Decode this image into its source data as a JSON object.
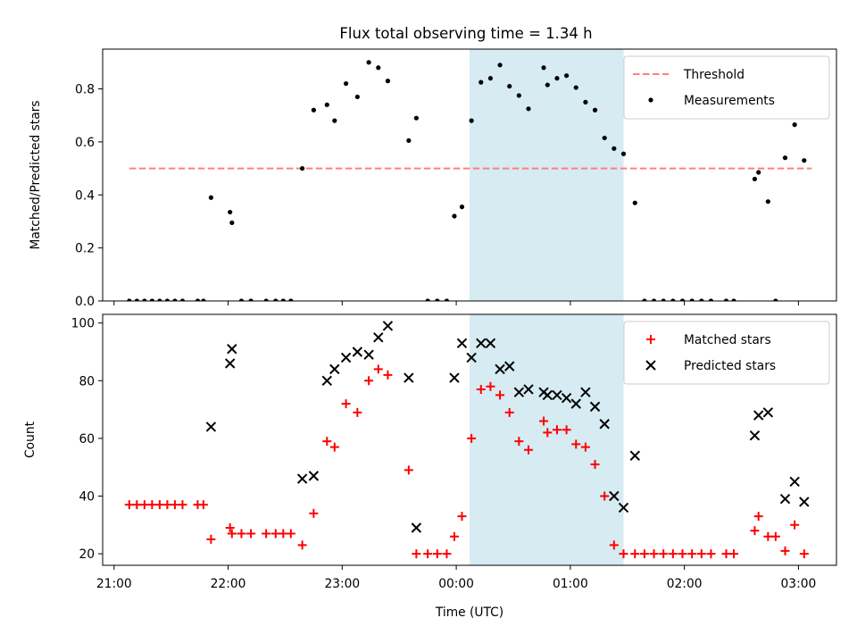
{
  "figure": {
    "title": "Flux total observing time = 1.34 h"
  },
  "chart_data": [
    {
      "type": "scatter",
      "ylabel": "Matched/Predicted stars",
      "xlabel": "",
      "xlim": [
        "20:54",
        "03:20"
      ],
      "ylim": [
        0,
        0.95
      ],
      "yticks": [
        0.0,
        0.2,
        0.4,
        0.6,
        0.8
      ],
      "ytick_labels": [
        "0.0",
        "0.2",
        "0.4",
        "0.6",
        "0.8"
      ],
      "legend_position": "upper right",
      "grid": false,
      "threshold": {
        "name": "Threshold",
        "value": 0.5,
        "x_start": "21:08",
        "x_end": "03:07",
        "color": "#ff7f7f"
      },
      "highlight_span": {
        "start": "00:07",
        "end": "01:28",
        "color": "#add8e6"
      },
      "series": [
        {
          "name": "Measurements",
          "color": "#000000",
          "points": [
            [
              "21:08",
              0.0
            ],
            [
              "21:12",
              0.0
            ],
            [
              "21:16",
              0.0
            ],
            [
              "21:20",
              0.0
            ],
            [
              "21:24",
              0.0
            ],
            [
              "21:28",
              0.0
            ],
            [
              "21:32",
              0.0
            ],
            [
              "21:36",
              0.0
            ],
            [
              "21:44",
              0.0
            ],
            [
              "21:47",
              0.0
            ],
            [
              "21:51",
              0.39
            ],
            [
              "22:01",
              0.335
            ],
            [
              "22:02",
              0.295
            ],
            [
              "22:07",
              0.0
            ],
            [
              "22:12",
              0.0
            ],
            [
              "22:20",
              0.0
            ],
            [
              "22:25",
              0.0
            ],
            [
              "22:29",
              0.0
            ],
            [
              "22:33",
              0.0
            ],
            [
              "22:39",
              0.5
            ],
            [
              "22:45",
              0.72
            ],
            [
              "22:52",
              0.74
            ],
            [
              "22:56",
              0.68
            ],
            [
              "23:02",
              0.82
            ],
            [
              "23:08",
              0.77
            ],
            [
              "23:14",
              0.9
            ],
            [
              "23:19",
              0.88
            ],
            [
              "23:24",
              0.83
            ],
            [
              "23:35",
              0.605
            ],
            [
              "23:39",
              0.69
            ],
            [
              "23:45",
              0.0
            ],
            [
              "23:50",
              0.0
            ],
            [
              "23:55",
              0.0
            ],
            [
              "23:59",
              0.32
            ],
            [
              "00:03",
              0.355
            ],
            [
              "00:08",
              0.68
            ],
            [
              "00:13",
              0.825
            ],
            [
              "00:18",
              0.84
            ],
            [
              "00:23",
              0.89
            ],
            [
              "00:28",
              0.81
            ],
            [
              "00:33",
              0.775
            ],
            [
              "00:38",
              0.725
            ],
            [
              "00:46",
              0.88
            ],
            [
              "00:48",
              0.815
            ],
            [
              "00:53",
              0.84
            ],
            [
              "00:58",
              0.85
            ],
            [
              "01:03",
              0.805
            ],
            [
              "01:08",
              0.75
            ],
            [
              "01:13",
              0.72
            ],
            [
              "01:18",
              0.615
            ],
            [
              "01:23",
              0.575
            ],
            [
              "01:28",
              0.555
            ],
            [
              "01:34",
              0.37
            ],
            [
              "01:39",
              0.0
            ],
            [
              "01:44",
              0.0
            ],
            [
              "01:49",
              0.0
            ],
            [
              "01:54",
              0.0
            ],
            [
              "01:59",
              0.0
            ],
            [
              "02:04",
              0.0
            ],
            [
              "02:09",
              0.0
            ],
            [
              "02:14",
              0.0
            ],
            [
              "02:22",
              0.0
            ],
            [
              "02:26",
              0.0
            ],
            [
              "02:37",
              0.46
            ],
            [
              "02:39",
              0.485
            ],
            [
              "02:44",
              0.375
            ],
            [
              "02:48",
              0.0
            ],
            [
              "02:53",
              0.54
            ],
            [
              "02:58",
              0.665
            ],
            [
              "03:03",
              0.53
            ]
          ]
        }
      ]
    },
    {
      "type": "scatter",
      "ylabel": "Count",
      "xlabel": "Time (UTC)",
      "xlim": [
        "20:54",
        "03:20"
      ],
      "ylim": [
        16,
        103
      ],
      "yticks": [
        20,
        40,
        60,
        80,
        100
      ],
      "ytick_labels": [
        "20",
        "40",
        "60",
        "80",
        "100"
      ],
      "xticks": [
        "21:00",
        "22:00",
        "23:00",
        "00:00",
        "01:00",
        "02:00",
        "03:00"
      ],
      "xtick_labels": [
        "21:00",
        "22:00",
        "23:00",
        "00:00",
        "01:00",
        "02:00",
        "03:00"
      ],
      "legend_position": "upper right",
      "grid": false,
      "highlight_span": {
        "start": "00:07",
        "end": "01:28",
        "color": "#add8e6"
      },
      "series": [
        {
          "name": "Matched stars",
          "marker": "+",
          "color": "#ff0000",
          "points": [
            [
              "21:08",
              37
            ],
            [
              "21:12",
              37
            ],
            [
              "21:16",
              37
            ],
            [
              "21:20",
              37
            ],
            [
              "21:24",
              37
            ],
            [
              "21:28",
              37
            ],
            [
              "21:32",
              37
            ],
            [
              "21:36",
              37
            ],
            [
              "21:44",
              37
            ],
            [
              "21:47",
              37
            ],
            [
              "21:51",
              25
            ],
            [
              "22:01",
              29
            ],
            [
              "22:02",
              27
            ],
            [
              "22:07",
              27
            ],
            [
              "22:12",
              27
            ],
            [
              "22:20",
              27
            ],
            [
              "22:25",
              27
            ],
            [
              "22:29",
              27
            ],
            [
              "22:33",
              27
            ],
            [
              "22:39",
              23
            ],
            [
              "22:45",
              34
            ],
            [
              "22:52",
              59
            ],
            [
              "22:56",
              57
            ],
            [
              "23:02",
              72
            ],
            [
              "23:08",
              69
            ],
            [
              "23:14",
              80
            ],
            [
              "23:19",
              84
            ],
            [
              "23:24",
              82
            ],
            [
              "23:35",
              49
            ],
            [
              "23:39",
              20
            ],
            [
              "23:45",
              20
            ],
            [
              "23:50",
              20
            ],
            [
              "23:55",
              20
            ],
            [
              "23:59",
              26
            ],
            [
              "00:03",
              33
            ],
            [
              "00:08",
              60
            ],
            [
              "00:13",
              77
            ],
            [
              "00:18",
              78
            ],
            [
              "00:23",
              75
            ],
            [
              "00:28",
              69
            ],
            [
              "00:33",
              59
            ],
            [
              "00:38",
              56
            ],
            [
              "00:46",
              66
            ],
            [
              "00:48",
              62
            ],
            [
              "00:53",
              63
            ],
            [
              "00:58",
              63
            ],
            [
              "01:03",
              58
            ],
            [
              "01:08",
              57
            ],
            [
              "01:13",
              51
            ],
            [
              "01:18",
              40
            ],
            [
              "01:23",
              23
            ],
            [
              "01:28",
              20
            ],
            [
              "01:34",
              20
            ],
            [
              "01:39",
              20
            ],
            [
              "01:44",
              20
            ],
            [
              "01:49",
              20
            ],
            [
              "01:54",
              20
            ],
            [
              "01:59",
              20
            ],
            [
              "02:04",
              20
            ],
            [
              "02:09",
              20
            ],
            [
              "02:14",
              20
            ],
            [
              "02:22",
              20
            ],
            [
              "02:26",
              20
            ],
            [
              "02:37",
              28
            ],
            [
              "02:39",
              33
            ],
            [
              "02:44",
              26
            ],
            [
              "02:48",
              26
            ],
            [
              "02:53",
              21
            ],
            [
              "02:58",
              30
            ],
            [
              "03:03",
              20
            ]
          ]
        },
        {
          "name": "Predicted stars",
          "marker": "x",
          "color": "#000000",
          "points": [
            [
              "21:51",
              64
            ],
            [
              "22:01",
              86
            ],
            [
              "22:02",
              91
            ],
            [
              "22:39",
              46
            ],
            [
              "22:45",
              47
            ],
            [
              "22:52",
              80
            ],
            [
              "22:56",
              84
            ],
            [
              "23:02",
              88
            ],
            [
              "23:08",
              90
            ],
            [
              "23:14",
              89
            ],
            [
              "23:19",
              95
            ],
            [
              "23:24",
              99
            ],
            [
              "23:35",
              81
            ],
            [
              "23:39",
              29
            ],
            [
              "23:59",
              81
            ],
            [
              "00:03",
              93
            ],
            [
              "00:08",
              88
            ],
            [
              "00:13",
              93
            ],
            [
              "00:18",
              93
            ],
            [
              "00:23",
              84
            ],
            [
              "00:28",
              85
            ],
            [
              "00:33",
              76
            ],
            [
              "00:38",
              77
            ],
            [
              "00:46",
              76
            ],
            [
              "00:48",
              75
            ],
            [
              "00:53",
              75
            ],
            [
              "00:58",
              74
            ],
            [
              "01:03",
              72
            ],
            [
              "01:08",
              76
            ],
            [
              "01:13",
              71
            ],
            [
              "01:18",
              65
            ],
            [
              "01:23",
              40
            ],
            [
              "01:28",
              36
            ],
            [
              "01:34",
              54
            ],
            [
              "02:37",
              61
            ],
            [
              "02:39",
              68
            ],
            [
              "02:44",
              69
            ],
            [
              "02:53",
              39
            ],
            [
              "02:58",
              45
            ],
            [
              "03:03",
              38
            ]
          ]
        }
      ]
    }
  ]
}
